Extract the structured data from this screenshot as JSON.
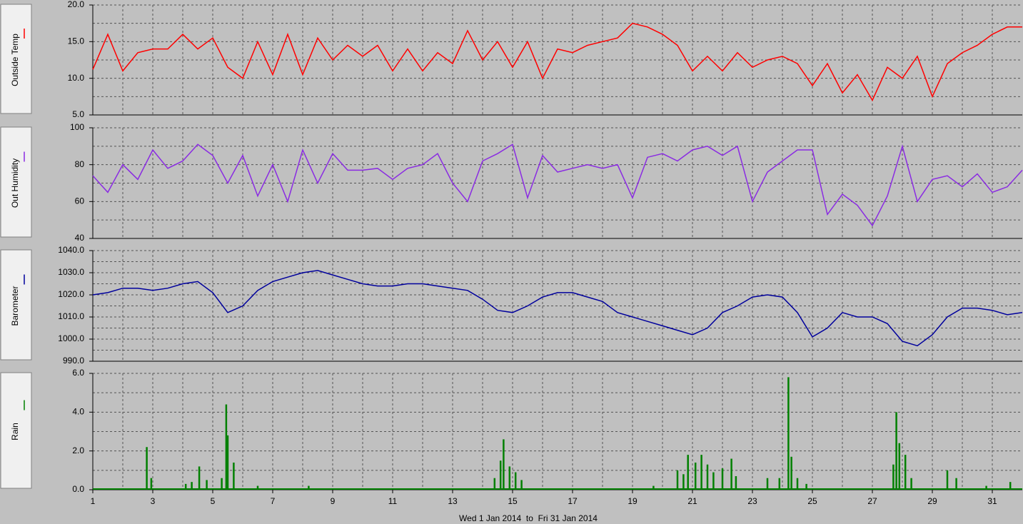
{
  "chart_data": [
    {
      "type": "line",
      "ylabel": "Outside Temp",
      "color": "#ff0000",
      "ylim": [
        5,
        20
      ],
      "yticks": [
        {
          "value": 5,
          "label": "5.0"
        },
        {
          "value": 10,
          "label": "10.0"
        },
        {
          "value": 15,
          "label": "15.0"
        },
        {
          "value": 20,
          "label": "20.0"
        }
      ],
      "x": [
        1,
        1.5,
        2,
        2.5,
        3,
        3.5,
        4,
        4.5,
        5,
        5.5,
        6,
        6.5,
        7,
        7.5,
        8,
        8.5,
        9,
        9.5,
        10,
        10.5,
        11,
        11.5,
        12,
        12.5,
        13,
        13.5,
        14,
        14.5,
        15,
        15.5,
        16,
        16.5,
        17,
        17.5,
        18,
        18.5,
        19,
        19.5,
        20,
        20.5,
        21,
        21.5,
        22,
        22.5,
        23,
        23.5,
        24,
        24.5,
        25,
        25.5,
        26,
        26.5,
        27,
        27.5,
        28,
        28.5,
        29,
        29.5,
        30,
        30.5,
        31,
        31.5,
        32
      ],
      "values": [
        11.2,
        16,
        11,
        13.5,
        14,
        14,
        16,
        14,
        15.5,
        11.5,
        10,
        15,
        10.5,
        16,
        10.5,
        15.5,
        12.5,
        14.5,
        13,
        14.5,
        11,
        14,
        11,
        13.5,
        12,
        16.5,
        12.5,
        15,
        11.5,
        15,
        10,
        14,
        13.5,
        14.5,
        15,
        15.5,
        17.5,
        17,
        16,
        14.5,
        11,
        13,
        11,
        13.5,
        11.5,
        12.5,
        13,
        12,
        9,
        12,
        8,
        10.5,
        7,
        11.5,
        10,
        13,
        7.5,
        12,
        13.5,
        14.5,
        16,
        17,
        17
      ]
    },
    {
      "type": "line",
      "ylabel": "Out Humidity",
      "color": "#8a2be2",
      "ylim": [
        40,
        100
      ],
      "yticks": [
        40,
        60,
        80,
        100
      ],
      "x": [
        1,
        1.5,
        2,
        2.5,
        3,
        3.5,
        4,
        4.5,
        5,
        5.5,
        6,
        6.5,
        7,
        7.5,
        8,
        8.5,
        9,
        9.5,
        10,
        10.5,
        11,
        11.5,
        12,
        12.5,
        13,
        13.5,
        14,
        14.5,
        15,
        15.5,
        16,
        16.5,
        17,
        17.5,
        18,
        18.5,
        19,
        19.5,
        20,
        20.5,
        21,
        21.5,
        22,
        22.5,
        23,
        23.5,
        24,
        24.5,
        25,
        25.5,
        26,
        26.5,
        27,
        27.5,
        28,
        28.5,
        29,
        29.5,
        30,
        30.5,
        31,
        31.5,
        32
      ],
      "values": [
        74,
        65,
        80,
        72,
        88,
        78,
        82,
        91,
        85,
        70,
        85,
        63,
        80,
        60,
        88,
        70,
        86,
        77,
        77,
        78,
        72,
        78,
        80,
        86,
        70,
        60,
        82,
        86,
        91,
        62,
        85,
        76,
        78,
        80,
        78,
        80,
        62,
        84,
        86,
        82,
        88,
        90,
        85,
        90,
        60,
        76,
        82,
        88,
        88,
        53,
        64,
        58,
        47,
        63,
        90,
        60,
        72,
        74,
        68,
        75,
        65,
        68,
        77
      ]
    },
    {
      "type": "line",
      "ylabel": "Barometer",
      "color": "#00009c",
      "ylim": [
        990,
        1040
      ],
      "yticks": [
        {
          "value": 990,
          "label": "990.0"
        },
        {
          "value": 1000,
          "label": "1000.0"
        },
        {
          "value": 1010,
          "label": "1010.0"
        },
        {
          "value": 1020,
          "label": "1020.0"
        },
        {
          "value": 1030,
          "label": "1030.0"
        },
        {
          "value": 1040,
          "label": "1040.0"
        }
      ],
      "x": [
        1,
        1.5,
        2,
        2.5,
        3,
        3.5,
        4,
        4.5,
        5,
        5.5,
        6,
        6.5,
        7,
        7.5,
        8,
        8.5,
        9,
        9.5,
        10,
        10.5,
        11,
        11.5,
        12,
        12.5,
        13,
        13.5,
        14,
        14.5,
        15,
        15.5,
        16,
        16.5,
        17,
        17.5,
        18,
        18.5,
        19,
        19.5,
        20,
        20.5,
        21,
        21.5,
        22,
        22.5,
        23,
        23.5,
        24,
        24.5,
        25,
        25.5,
        26,
        26.5,
        27,
        27.5,
        28,
        28.5,
        29,
        29.5,
        30,
        30.5,
        31,
        31.5,
        32
      ],
      "values": [
        1020,
        1021,
        1023,
        1023,
        1022,
        1023,
        1025,
        1026,
        1021,
        1012,
        1015,
        1022,
        1026,
        1028,
        1030,
        1031,
        1029,
        1027,
        1025,
        1024,
        1024,
        1025,
        1025,
        1024,
        1023,
        1022,
        1018,
        1013,
        1012,
        1015,
        1019,
        1021,
        1021,
        1019,
        1017,
        1012,
        1010,
        1008,
        1006,
        1004,
        1002,
        1005,
        1012,
        1015,
        1019,
        1020,
        1019,
        1012,
        1001,
        1005,
        1012,
        1010,
        1010,
        1007,
        999,
        997,
        1002,
        1010,
        1014,
        1014,
        1013,
        1011,
        1012
      ]
    },
    {
      "type": "bar",
      "ylabel": "Rain",
      "color": "#008000",
      "ylim": [
        0,
        6
      ],
      "yticks": [
        {
          "value": 0,
          "label": "0.0"
        },
        {
          "value": 2,
          "label": "2.0"
        },
        {
          "value": 4,
          "label": "4.0"
        },
        {
          "value": 6,
          "label": "6.0"
        }
      ],
      "xlim": [
        1,
        32
      ],
      "xticks": [
        1,
        3,
        5,
        7,
        9,
        11,
        13,
        15,
        17,
        19,
        21,
        23,
        25,
        27,
        29,
        31
      ],
      "xlabel": "Wed 1 Jan 2014  to  Fri 31 Jan 2014",
      "x": [
        2.8,
        2.95,
        4.1,
        4.3,
        4.55,
        4.8,
        5.3,
        5.45,
        5.5,
        5.7,
        6.5,
        8.2,
        14.4,
        14.6,
        14.7,
        14.9,
        15.1,
        15.3,
        19.7,
        20.5,
        20.7,
        20.85,
        21.1,
        21.3,
        21.5,
        21.7,
        22.0,
        22.3,
        22.45,
        23.5,
        23.9,
        24.2,
        24.3,
        24.5,
        24.8,
        27.7,
        27.8,
        27.9,
        28.1,
        28.3,
        29.5,
        29.8,
        30.8,
        31.6
      ],
      "values": [
        2.2,
        0.6,
        0.3,
        0.4,
        1.2,
        0.5,
        0.6,
        4.4,
        2.8,
        1.4,
        0.2,
        0.2,
        0.6,
        1.5,
        2.6,
        1.2,
        0.9,
        0.5,
        0.2,
        1.0,
        0.8,
        1.8,
        1.4,
        1.8,
        1.3,
        0.9,
        1.1,
        1.6,
        0.7,
        0.6,
        0.6,
        5.8,
        1.7,
        0.6,
        0.3,
        1.3,
        4.0,
        2.4,
        1.8,
        0.6,
        1.0,
        0.6,
        0.2,
        0.4
      ]
    }
  ]
}
